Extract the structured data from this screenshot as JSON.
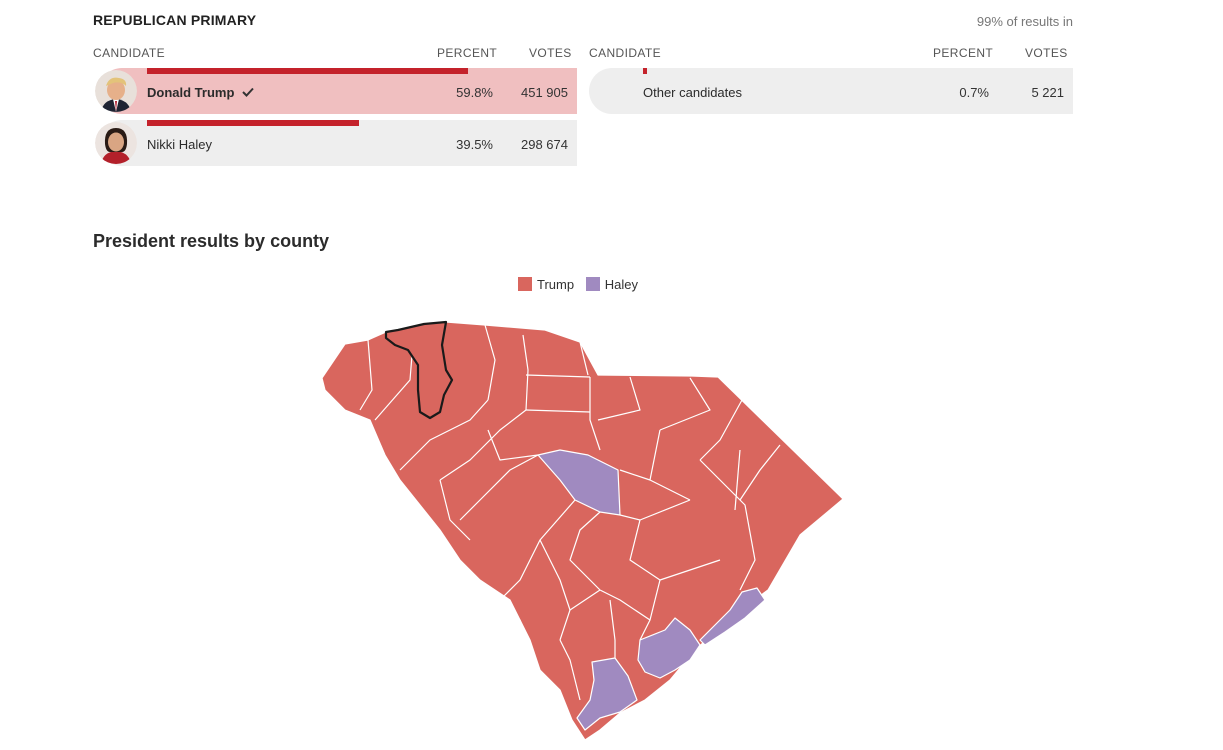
{
  "header": {
    "title": "REPUBLICAN PRIMARY",
    "results_in": "99% of results in"
  },
  "table": {
    "col_candidate": "CANDIDATE",
    "col_percent": "PERCENT",
    "col_votes": "VOTES",
    "left_rows": [
      {
        "name": "Donald Trump",
        "percent": "59.8%",
        "votes": "451 905",
        "share": 0.598,
        "winner": true
      },
      {
        "name": "Nikki Haley",
        "percent": "39.5%",
        "votes": "298 674",
        "share": 0.395,
        "winner": false
      }
    ],
    "right_rows": [
      {
        "name": "Other candidates",
        "percent": "0.7%",
        "votes": "5 221",
        "share": 0.007
      }
    ]
  },
  "map": {
    "title": "President results by county",
    "legend": [
      {
        "label": "Trump",
        "color": "#d9665e"
      },
      {
        "label": "Haley",
        "color": "#a08ac0"
      }
    ],
    "highlighted_county_outline": "#1a1a1a"
  },
  "colors": {
    "trump": "#d9665e",
    "haley": "#a08ac0",
    "bar": "#c4222b",
    "winner_row_bg": "#f0bfc0",
    "row_bg": "#eeeeee"
  }
}
